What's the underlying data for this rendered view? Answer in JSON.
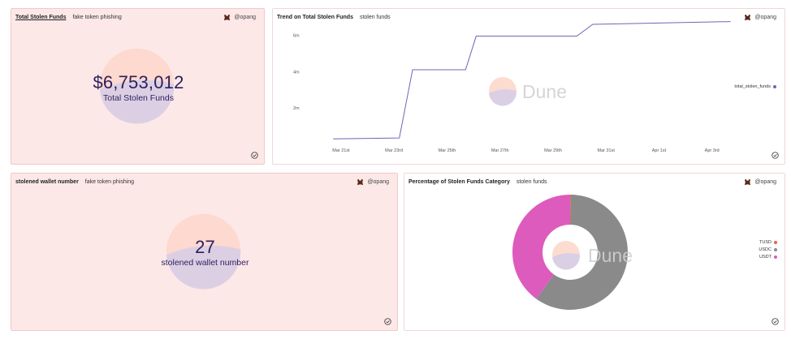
{
  "colors": {
    "accent": "#2b1f5e",
    "line": "#6f64b8",
    "usdt": "#dd5bbd",
    "usdc": "#8a8a8a",
    "tusd": "#e8643c"
  },
  "watermark": {
    "brand": "Dune"
  },
  "panel1": {
    "title": "Total Stolen Funds",
    "subtitle": "fake token phishing",
    "author": "@opang",
    "value": "$6,753,012",
    "label": "Total Stolen Funds"
  },
  "panel2": {
    "title": "Trend on Total Stolen Funds",
    "subtitle": "stolen funds",
    "author": "@opang",
    "legend": "total_stolen_funds"
  },
  "panel3": {
    "title": "stolened wallet number",
    "subtitle": "fake token phishing",
    "author": "@opang",
    "value": "27",
    "label": "stolened wallet number"
  },
  "panel4": {
    "title": "Percentage of Stolen Funds Category",
    "subtitle": "stolen funds",
    "author": "@opang"
  },
  "chart_data": [
    {
      "type": "line",
      "title": "Trend on Total Stolen Funds",
      "x_ticks": [
        "Mar 21st",
        "Mar 23rd",
        "Mar 25th",
        "Mar 27th",
        "Mar 29th",
        "Mar 31st",
        "Apr 1st",
        "Apr 3rd"
      ],
      "y_ticks": [
        "2m",
        "4m",
        "6m"
      ],
      "ylim": [
        0,
        7
      ],
      "series": [
        {
          "name": "total_stolen_funds",
          "x": [
            0,
            1.25,
            1.5,
            2.5,
            2.7,
            4.6,
            4.9,
            7.5
          ],
          "values": [
            0.3,
            0.35,
            4.1,
            4.1,
            5.95,
            5.95,
            6.6,
            6.75
          ]
        }
      ]
    },
    {
      "type": "pie",
      "title": "Percentage of Stolen Funds Category",
      "labels": [
        "TUSD",
        "USDC",
        "USDT"
      ],
      "values": [
        0.2,
        59.8,
        40.0
      ]
    }
  ]
}
